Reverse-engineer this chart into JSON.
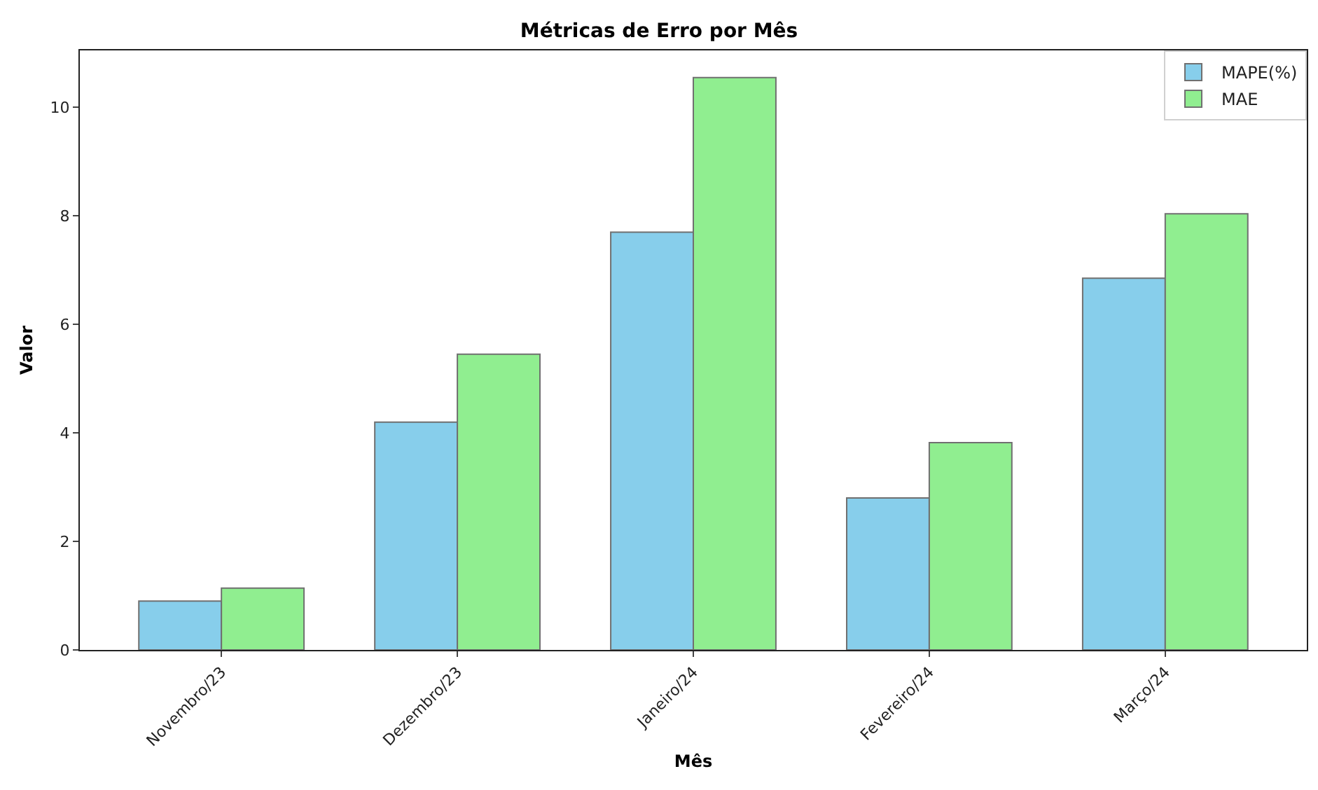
{
  "chart_data": {
    "type": "bar",
    "title": "Métricas de Erro por Mês",
    "xlabel": "Mês",
    "ylabel": "Valor",
    "categories": [
      "Novembro/23",
      "Dezembro/23",
      "Janeiro/24",
      "Fevereiro/24",
      "Março/24"
    ],
    "series": [
      {
        "name": "MAPE(%)",
        "color": "#87ceeb",
        "values": [
          0.9,
          4.2,
          7.7,
          2.8,
          6.85
        ]
      },
      {
        "name": "MAE",
        "color": "#90ee90",
        "values": [
          1.14,
          5.45,
          10.55,
          3.82,
          8.04
        ]
      }
    ],
    "ylim": [
      0,
      11.05
    ],
    "yticks": [
      0,
      2,
      4,
      6,
      8,
      10
    ],
    "grid": false,
    "legend": "top right"
  }
}
